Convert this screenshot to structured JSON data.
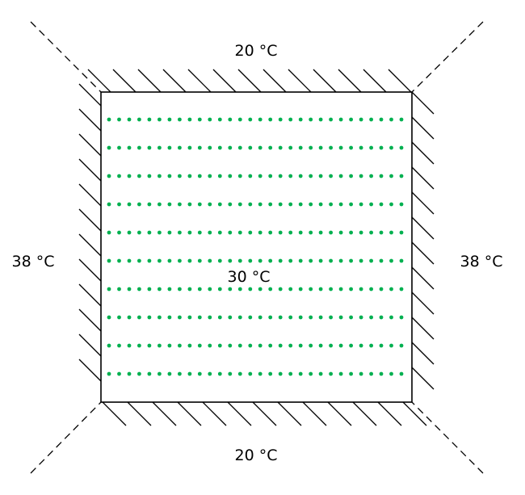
{
  "labels": {
    "top": "20 °C",
    "bottom": "20 °C",
    "left": "38 °C",
    "right": "38 °C",
    "center": "30 °C"
  },
  "colors": {
    "outline": "#000000",
    "hatch": "#000000",
    "dashed": "#000000",
    "dots": "#00b050"
  },
  "grid": {
    "rows": 10,
    "columns": 30
  }
}
